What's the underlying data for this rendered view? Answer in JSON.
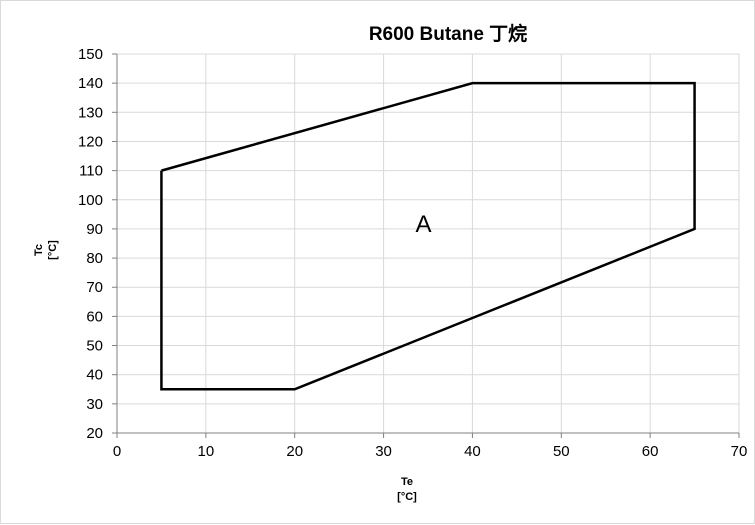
{
  "chart_data": {
    "type": "area",
    "title": "R600 Butane  丁烷",
    "xlabel": "Te",
    "xlabel_unit": "[°C]",
    "ylabel": "Tc",
    "ylabel_unit": "[°C]",
    "xlim": [
      0,
      70
    ],
    "ylim": [
      20,
      150
    ],
    "x_ticks": [
      0,
      10,
      20,
      30,
      40,
      50,
      60,
      70
    ],
    "y_ticks": [
      20,
      30,
      40,
      50,
      60,
      70,
      80,
      90,
      100,
      110,
      120,
      130,
      140,
      150
    ],
    "grid": true,
    "series": [
      {
        "name": "A",
        "x": [
          5,
          40,
          65,
          65,
          20,
          5,
          5
        ],
        "y": [
          110,
          140,
          140,
          90,
          35,
          35,
          110
        ]
      }
    ],
    "annotations": [
      {
        "text": "A",
        "x": 34.5,
        "y": 92
      }
    ],
    "colors": {
      "envelope": "#000000",
      "grid": "#d9d9d9",
      "axis": "#808080"
    }
  }
}
